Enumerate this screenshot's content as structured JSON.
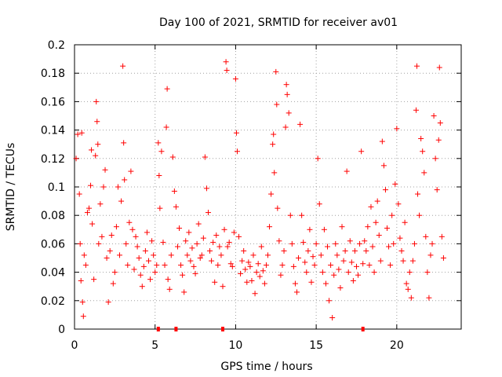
{
  "chart_data": {
    "type": "scatter",
    "title": "Day 100 of 2021, SRMTID for receiver av01",
    "xlabel": "GPS time / hours",
    "ylabel": "SRMTID / TECUs",
    "xlim": [
      0,
      24
    ],
    "ylim": [
      0,
      0.2
    ],
    "xticks": [
      0,
      5,
      10,
      15,
      20
    ],
    "xtick_labels": [
      "0",
      "5",
      "10",
      "15",
      "20"
    ],
    "yticks": [
      0,
      0.02,
      0.04,
      0.06,
      0.08,
      0.1,
      0.12,
      0.14,
      0.16,
      0.18,
      0.2
    ],
    "ytick_labels": [
      "0",
      "0.02",
      "0.04",
      "0.06",
      "0.08",
      "0.1",
      "0.12",
      "0.14",
      "0.16",
      "0.18",
      "0.2"
    ],
    "grid": true,
    "marker": "+",
    "color": "#ff0000",
    "series": [
      {
        "name": "SRMTID",
        "points": [
          [
            0.1,
            0.12
          ],
          [
            0.2,
            0.137
          ],
          [
            0.3,
            0.095
          ],
          [
            0.35,
            0.06
          ],
          [
            0.4,
            0.034
          ],
          [
            0.45,
            0.138
          ],
          [
            0.5,
            0.019
          ],
          [
            0.55,
            0.009
          ],
          [
            0.6,
            0.052
          ],
          [
            0.7,
            0.045
          ],
          [
            0.8,
            0.082
          ],
          [
            0.9,
            0.085
          ],
          [
            1.0,
            0.101
          ],
          [
            1.05,
            0.126
          ],
          [
            1.1,
            0.074
          ],
          [
            1.2,
            0.035
          ],
          [
            1.3,
            0.122
          ],
          [
            1.35,
            0.16
          ],
          [
            1.4,
            0.146
          ],
          [
            1.45,
            0.13
          ],
          [
            1.5,
            0.06
          ],
          [
            1.6,
            0.088
          ],
          [
            1.7,
            0.065
          ],
          [
            1.8,
            0.1
          ],
          [
            1.9,
            0.112
          ],
          [
            2.0,
            0.05
          ],
          [
            2.1,
            0.019
          ],
          [
            2.2,
            0.055
          ],
          [
            2.3,
            0.066
          ],
          [
            2.4,
            0.032
          ],
          [
            2.5,
            0.04
          ],
          [
            2.6,
            0.072
          ],
          [
            2.7,
            0.1
          ],
          [
            2.8,
            0.052
          ],
          [
            2.9,
            0.09
          ],
          [
            3.0,
            0.185
          ],
          [
            3.05,
            0.131
          ],
          [
            3.1,
            0.105
          ],
          [
            3.2,
            0.06
          ],
          [
            3.3,
            0.045
          ],
          [
            3.4,
            0.075
          ],
          [
            3.5,
            0.111
          ],
          [
            3.6,
            0.07
          ],
          [
            3.7,
            0.042
          ],
          [
            3.8,
            0.065
          ],
          [
            3.9,
            0.058
          ],
          [
            4.0,
            0.05
          ],
          [
            4.1,
            0.038
          ],
          [
            4.2,
            0.03
          ],
          [
            4.3,
            0.044
          ],
          [
            4.4,
            0.055
          ],
          [
            4.5,
            0.068
          ],
          [
            4.6,
            0.048
          ],
          [
            4.7,
            0.035
          ],
          [
            4.8,
            0.062
          ],
          [
            4.9,
            0.052
          ],
          [
            5.0,
            0.04
          ],
          [
            5.1,
            0.045
          ],
          [
            5.2,
            0.131
          ],
          [
            5.25,
            0.108
          ],
          [
            5.3,
            0.085
          ],
          [
            5.4,
            0.125
          ],
          [
            5.5,
            0.061
          ],
          [
            5.6,
            0.045
          ],
          [
            5.7,
            0.142
          ],
          [
            5.75,
            0.169
          ],
          [
            5.8,
            0.035
          ],
          [
            5.9,
            0.028
          ],
          [
            6.0,
            0.052
          ],
          [
            6.1,
            0.121
          ],
          [
            6.2,
            0.097
          ],
          [
            6.3,
            0.086
          ],
          [
            6.4,
            0.058
          ],
          [
            6.5,
            0.071
          ],
          [
            6.6,
            0.045
          ],
          [
            6.7,
            0.038
          ],
          [
            6.8,
            0.026
          ],
          [
            6.9,
            0.062
          ],
          [
            7.0,
            0.052
          ],
          [
            7.1,
            0.068
          ],
          [
            7.2,
            0.048
          ],
          [
            7.3,
            0.057
          ],
          [
            7.4,
            0.044
          ],
          [
            7.5,
            0.039
          ],
          [
            7.6,
            0.06
          ],
          [
            7.7,
            0.074
          ],
          [
            7.8,
            0.05
          ],
          [
            7.9,
            0.052
          ],
          [
            8.0,
            0.064
          ],
          [
            8.1,
            0.121
          ],
          [
            8.2,
            0.099
          ],
          [
            8.3,
            0.082
          ],
          [
            8.4,
            0.055
          ],
          [
            8.5,
            0.048
          ],
          [
            8.6,
            0.061
          ],
          [
            8.7,
            0.033
          ],
          [
            8.8,
            0.066
          ],
          [
            8.9,
            0.045
          ],
          [
            9.0,
            0.058
          ],
          [
            9.1,
            0.052
          ],
          [
            9.2,
            0.03
          ],
          [
            9.3,
            0.07
          ],
          [
            9.4,
            0.188
          ],
          [
            9.45,
            0.182
          ],
          [
            9.5,
            0.058
          ],
          [
            9.6,
            0.061
          ],
          [
            9.7,
            0.046
          ],
          [
            9.8,
            0.044
          ],
          [
            9.9,
            0.068
          ],
          [
            10.0,
            0.176
          ],
          [
            10.05,
            0.138
          ],
          [
            10.1,
            0.125
          ],
          [
            10.2,
            0.065
          ],
          [
            10.3,
            0.039
          ],
          [
            10.4,
            0.048
          ],
          [
            10.5,
            0.055
          ],
          [
            10.6,
            0.042
          ],
          [
            10.7,
            0.033
          ],
          [
            10.8,
            0.047
          ],
          [
            10.9,
            0.044
          ],
          [
            11.0,
            0.034
          ],
          [
            11.1,
            0.052
          ],
          [
            11.2,
            0.025
          ],
          [
            11.3,
            0.04
          ],
          [
            11.4,
            0.046
          ],
          [
            11.5,
            0.037
          ],
          [
            11.6,
            0.058
          ],
          [
            11.7,
            0.041
          ],
          [
            11.8,
            0.032
          ],
          [
            11.9,
            0.045
          ],
          [
            12.0,
            0.052
          ],
          [
            12.1,
            0.072
          ],
          [
            12.2,
            0.095
          ],
          [
            12.3,
            0.13
          ],
          [
            12.35,
            0.137
          ],
          [
            12.4,
            0.11
          ],
          [
            12.5,
            0.181
          ],
          [
            12.55,
            0.158
          ],
          [
            12.6,
            0.085
          ],
          [
            12.7,
            0.062
          ],
          [
            12.8,
            0.038
          ],
          [
            12.9,
            0.045
          ],
          [
            13.0,
            0.055
          ],
          [
            13.1,
            0.142
          ],
          [
            13.15,
            0.172
          ],
          [
            13.2,
            0.165
          ],
          [
            13.3,
            0.152
          ],
          [
            13.4,
            0.08
          ],
          [
            13.5,
            0.06
          ],
          [
            13.6,
            0.044
          ],
          [
            13.7,
            0.032
          ],
          [
            13.8,
            0.026
          ],
          [
            13.9,
            0.05
          ],
          [
            14.0,
            0.144
          ],
          [
            14.1,
            0.08
          ],
          [
            14.2,
            0.061
          ],
          [
            14.3,
            0.047
          ],
          [
            14.4,
            0.04
          ],
          [
            14.5,
            0.055
          ],
          [
            14.6,
            0.07
          ],
          [
            14.7,
            0.033
          ],
          [
            14.8,
            0.051
          ],
          [
            14.9,
            0.045
          ],
          [
            15.0,
            0.06
          ],
          [
            15.1,
            0.12
          ],
          [
            15.2,
            0.088
          ],
          [
            15.3,
            0.052
          ],
          [
            15.4,
            0.04
          ],
          [
            15.5,
            0.07
          ],
          [
            15.6,
            0.032
          ],
          [
            15.7,
            0.058
          ],
          [
            15.8,
            0.02
          ],
          [
            15.9,
            0.045
          ],
          [
            16.0,
            0.008
          ],
          [
            16.1,
            0.038
          ],
          [
            16.2,
            0.06
          ],
          [
            16.3,
            0.052
          ],
          [
            16.4,
            0.042
          ],
          [
            16.5,
            0.029
          ],
          [
            16.6,
            0.072
          ],
          [
            16.7,
            0.048
          ],
          [
            16.8,
            0.055
          ],
          [
            16.9,
            0.111
          ],
          [
            17.0,
            0.04
          ],
          [
            17.1,
            0.062
          ],
          [
            17.2,
            0.047
          ],
          [
            17.3,
            0.034
          ],
          [
            17.4,
            0.055
          ],
          [
            17.5,
            0.044
          ],
          [
            17.6,
            0.038
          ],
          [
            17.7,
            0.06
          ],
          [
            17.8,
            0.125
          ],
          [
            17.9,
            0.046
          ],
          [
            18.0,
            0.062
          ],
          [
            18.1,
            0.055
          ],
          [
            18.2,
            0.072
          ],
          [
            18.3,
            0.045
          ],
          [
            18.4,
            0.086
          ],
          [
            18.5,
            0.058
          ],
          [
            18.6,
            0.04
          ],
          [
            18.7,
            0.075
          ],
          [
            18.8,
            0.09
          ],
          [
            18.9,
            0.066
          ],
          [
            19.0,
            0.048
          ],
          [
            19.1,
            0.132
          ],
          [
            19.2,
            0.115
          ],
          [
            19.3,
            0.098
          ],
          [
            19.4,
            0.071
          ],
          [
            19.5,
            0.058
          ],
          [
            19.6,
            0.045
          ],
          [
            19.7,
            0.08
          ],
          [
            19.8,
            0.06
          ],
          [
            19.9,
            0.102
          ],
          [
            20.0,
            0.141
          ],
          [
            20.1,
            0.088
          ],
          [
            20.2,
            0.064
          ],
          [
            20.3,
            0.055
          ],
          [
            20.4,
            0.048
          ],
          [
            20.5,
            0.075
          ],
          [
            20.6,
            0.032
          ],
          [
            20.7,
            0.028
          ],
          [
            20.8,
            0.04
          ],
          [
            20.9,
            0.022
          ],
          [
            21.0,
            0.048
          ],
          [
            21.1,
            0.06
          ],
          [
            21.2,
            0.154
          ],
          [
            21.25,
            0.185
          ],
          [
            21.3,
            0.095
          ],
          [
            21.4,
            0.08
          ],
          [
            21.5,
            0.134
          ],
          [
            21.6,
            0.125
          ],
          [
            21.7,
            0.11
          ],
          [
            21.8,
            0.065
          ],
          [
            21.9,
            0.04
          ],
          [
            22.0,
            0.022
          ],
          [
            22.1,
            0.052
          ],
          [
            22.2,
            0.06
          ],
          [
            22.3,
            0.15
          ],
          [
            22.4,
            0.12
          ],
          [
            22.5,
            0.098
          ],
          [
            22.6,
            0.133
          ],
          [
            22.65,
            0.184
          ],
          [
            22.7,
            0.145
          ],
          [
            22.8,
            0.065
          ],
          [
            22.9,
            0.05
          ]
        ]
      }
    ],
    "zero_markers_x": [
      5.2,
      6.3,
      9.2,
      17.9
    ]
  }
}
